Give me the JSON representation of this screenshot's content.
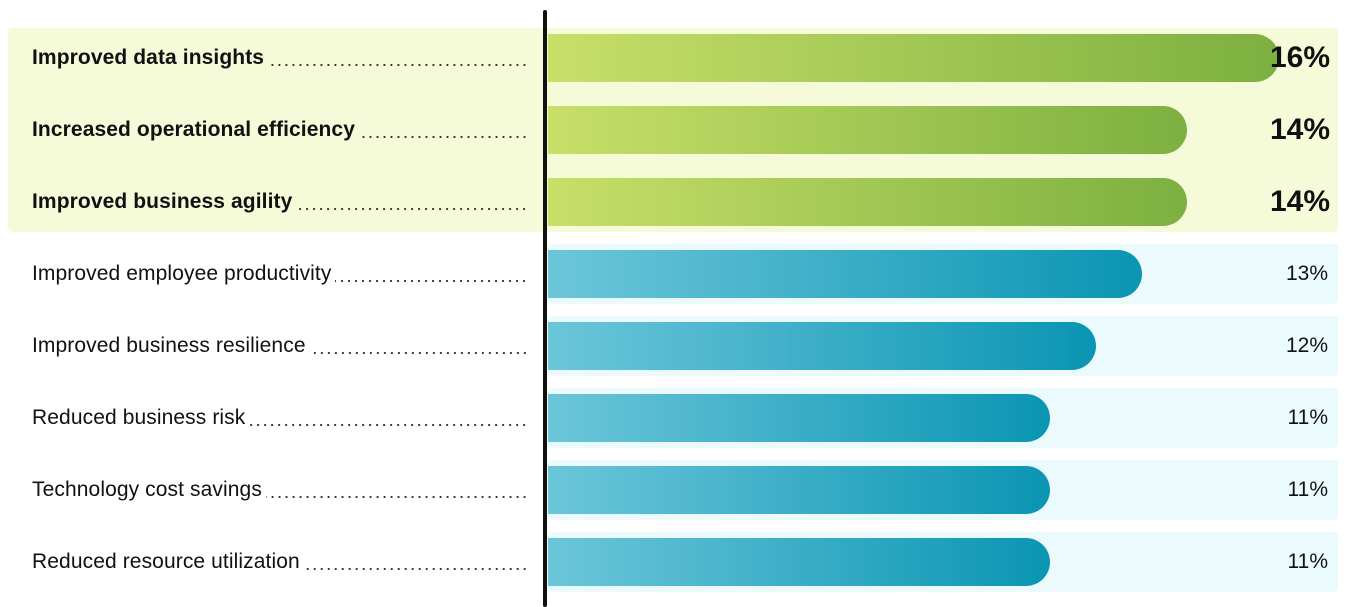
{
  "chart_data": {
    "type": "bar",
    "orientation": "horizontal",
    "categories": [
      "Improved data insights",
      "Increased operational efficiency",
      "Improved business agility",
      "Improved employee productivity",
      "Improved business resilience",
      "Reduced business risk",
      "Technology cost savings",
      "Reduced resource utilization"
    ],
    "values": [
      16,
      14,
      14,
      13,
      12,
      11,
      11,
      11
    ],
    "value_labels": [
      "16%",
      "14%",
      "14%",
      "13%",
      "12%",
      "11%",
      "11%",
      "11%"
    ],
    "highlighted": [
      true,
      true,
      true,
      false,
      false,
      false,
      false,
      false
    ],
    "unit": "%",
    "xlim": [
      0,
      17.3
    ],
    "title": "",
    "xlabel": "",
    "ylabel": "",
    "grid": false,
    "legend": "none",
    "colors": {
      "highlight_bar_start": "#c8df68",
      "highlight_bar_end": "#7cb040",
      "bar_start": "#6cc6da",
      "bar_end": "#0a95b3",
      "highlight_panel": "#f5fbd8",
      "row_background": "#ebfbfd",
      "axis": "#111111"
    }
  }
}
